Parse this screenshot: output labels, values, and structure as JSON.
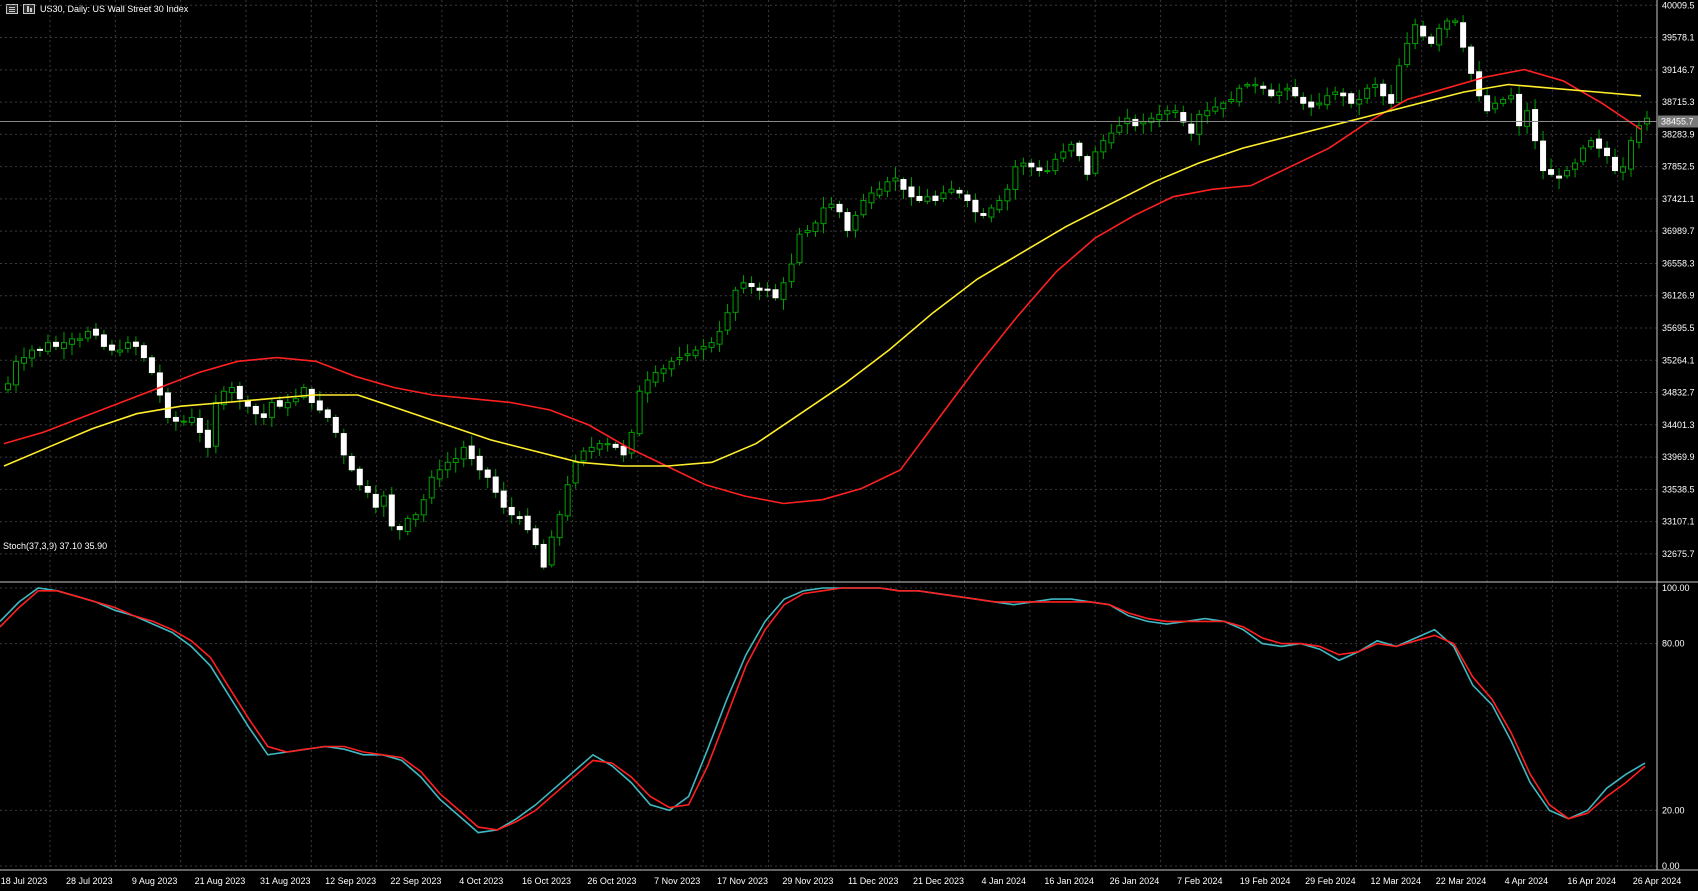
{
  "header": {
    "symbol_text": "US30, Daily:  US Wall Street 30 Index"
  },
  "stoch_label": "Stoch(37,3,9) 37.10 35.90",
  "colors": {
    "background": "#000000",
    "grid": "#3a3a3a",
    "bull_candle": "#00a000",
    "bear_candle": "#ffffff",
    "ma_fast": "#ff2020",
    "ma_slow": "#ffee2a",
    "stoch_main": "#3fb8c2",
    "stoch_signal": "#ff2020",
    "axis_text": "#ffffff"
  },
  "chart_data": [
    {
      "type": "candlestick",
      "title": "US30, Daily:  US Wall Street 30 Index",
      "ylim": [
        32300,
        40080
      ],
      "y_ticks": [
        "40009.5",
        "39578.1",
        "39146.7",
        "38715.3",
        "38283.9",
        "37852.5",
        "37421.1",
        "36989.7",
        "36558.3",
        "36126.9",
        "35695.5",
        "35264.1",
        "34832.7",
        "34401.3",
        "33969.9",
        "33538.5",
        "33107.1",
        "32675.7"
      ],
      "last_price": "38455.7",
      "x_labels": [
        "18 Jul 2023",
        "28 Jul 2023",
        "9 Aug 2023",
        "21 Aug 2023",
        "31 Aug 2023",
        "12 Sep 2023",
        "22 Sep 2023",
        "4 Oct 2023",
        "16 Oct 2023",
        "26 Oct 2023",
        "7 Nov 2023",
        "17 Nov 2023",
        "29 Nov 2023",
        "11 Dec 2023",
        "21 Dec 2023",
        "4 Jan 2024",
        "16 Jan 2024",
        "26 Jan 2024",
        "7 Feb 2024",
        "19 Feb 2024",
        "29 Feb 2024",
        "12 Mar 2024",
        "22 Mar 2024",
        "4 Apr 2024",
        "16 Apr 2024",
        "26 Apr 2024"
      ],
      "close_approx": [
        34950,
        35250,
        35300,
        35400,
        35400,
        35500,
        35450,
        35500,
        35550,
        35550,
        35650,
        35600,
        35450,
        35400,
        35400,
        35500,
        35450,
        35300,
        35100,
        34800,
        34500,
        34450,
        34450,
        34500,
        34300,
        34100,
        34700,
        34850,
        34900,
        34750,
        34650,
        34550,
        34500,
        34700,
        34650,
        34700,
        34750,
        34900,
        34700,
        34600,
        34500,
        34300,
        34000,
        33800,
        33600,
        33500,
        33300,
        33450,
        33050,
        33000,
        33150,
        33200,
        33400,
        33700,
        33800,
        33900,
        33950,
        34100,
        33950,
        33800,
        33700,
        33500,
        33300,
        33200,
        33150,
        33000,
        32800,
        32500,
        32900,
        33200,
        33600,
        33900,
        34050,
        34100,
        34150,
        34150,
        34100,
        34000,
        34300,
        34850,
        35000,
        35100,
        35150,
        35250,
        35300,
        35350,
        35400,
        35450,
        35500,
        35650,
        35900,
        36200,
        36300,
        36250,
        36200,
        36200,
        36100,
        36300,
        36550,
        36950,
        37000,
        37100,
        37300,
        37350,
        37250,
        37000,
        37200,
        37400,
        37500,
        37550,
        37650,
        37700,
        37550,
        37450,
        37400,
        37450,
        37400,
        37500,
        37550,
        37500,
        37400,
        37250,
        37200,
        37300,
        37400,
        37550,
        37850,
        37900,
        37850,
        37800,
        37800,
        37950,
        38050,
        38150,
        38000,
        37750,
        38050,
        38200,
        38300,
        38400,
        38500,
        38400,
        38450,
        38500,
        38550,
        38600,
        38600,
        38450,
        38300,
        38550,
        38600,
        38650,
        38700,
        38750,
        38900,
        38950,
        38950,
        38900,
        38800,
        38850,
        38900,
        38800,
        38700,
        38650,
        38700,
        38800,
        38850,
        38800,
        38700,
        38750,
        38900,
        38950,
        38800,
        38700,
        39200,
        39500,
        39750,
        39600,
        39500,
        39700,
        39800,
        39800,
        39450,
        39100,
        38800,
        38600,
        38700,
        38750,
        38800,
        38400,
        38600,
        38200,
        37800,
        37750,
        37700,
        37800,
        37900,
        38100,
        38200,
        38100,
        38000,
        37800,
        37850,
        38200,
        38400,
        38500
      ],
      "series": [
        {
          "name": "",
          "approx": [
            34150,
            34300,
            34500,
            34700,
            34900,
            35100,
            35250,
            35300,
            35250,
            35050,
            34900,
            34800,
            34750,
            34700,
            34600,
            34400,
            34100,
            33850,
            33600,
            33450,
            33350,
            33400,
            33550,
            33800,
            34500,
            35200,
            35850,
            36450,
            36900,
            37200,
            37450,
            37550,
            37600,
            37850,
            38100,
            38450,
            38750,
            38900,
            39050,
            39150,
            39000,
            38700,
            38350
          ]
        },
        {
          "name": "",
          "approx": [
            33850,
            34100,
            34350,
            34550,
            34650,
            34700,
            34750,
            34800,
            34800,
            34600,
            34400,
            34200,
            34050,
            33900,
            33850,
            33850,
            33900,
            34150,
            34550,
            34950,
            35400,
            35900,
            36350,
            36700,
            37050,
            37350,
            37650,
            37900,
            38100,
            38250,
            38400,
            38550,
            38700,
            38850,
            38950,
            38900,
            38850,
            38800
          ]
        }
      ]
    },
    {
      "type": "line",
      "title": "Stoch(37,3,9) 37.10 35.90",
      "ylim": [
        0,
        100
      ],
      "y_ticks": [
        "100.00",
        "80.00",
        "20.00",
        "0.00"
      ],
      "series": [
        {
          "name": "",
          "values": [
            88,
            95,
            100,
            99,
            97,
            95,
            92,
            90,
            87,
            84,
            79,
            72,
            61,
            50,
            40,
            41,
            42,
            43,
            42,
            40,
            40,
            38,
            32,
            24,
            18,
            12,
            13,
            17,
            22,
            28,
            34,
            40,
            36,
            30,
            22,
            20,
            25,
            42,
            60,
            76,
            88,
            96,
            99,
            100,
            100,
            100,
            100,
            99,
            99,
            98,
            97,
            96,
            95,
            94,
            95,
            96,
            96,
            95,
            94,
            90,
            88,
            87,
            88,
            89,
            88,
            85,
            80,
            79,
            80,
            78,
            74,
            77,
            81,
            79,
            82,
            85,
            79,
            65,
            58,
            45,
            30,
            20,
            17,
            20,
            28,
            33,
            37
          ]
        },
        {
          "name": "",
          "values": [
            86,
            93,
            99,
            99,
            97,
            95,
            93,
            90,
            88,
            85,
            81,
            75,
            64,
            53,
            43,
            41,
            42,
            43,
            43,
            41,
            40,
            39,
            34,
            26,
            20,
            14,
            13,
            16,
            20,
            26,
            32,
            38,
            37,
            32,
            25,
            21,
            22,
            36,
            54,
            72,
            85,
            94,
            98,
            99,
            100,
            100,
            100,
            99,
            99,
            98,
            97,
            96,
            95,
            95,
            95,
            95,
            95,
            95,
            94,
            91,
            89,
            88,
            88,
            88,
            88,
            86,
            82,
            80,
            80,
            79,
            76,
            77,
            80,
            79,
            81,
            83,
            80,
            68,
            60,
            48,
            33,
            22,
            17,
            19,
            25,
            30,
            35.9
          ]
        }
      ]
    }
  ]
}
